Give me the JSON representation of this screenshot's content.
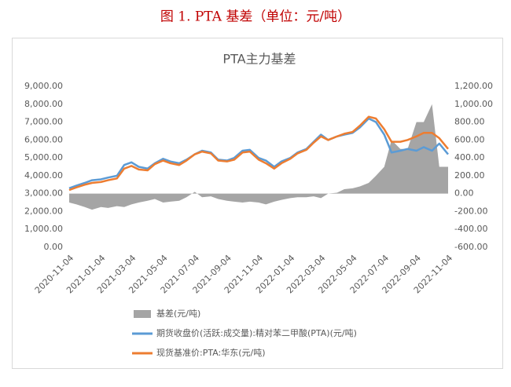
{
  "heading": "图 1. PTA 基差（单位：元/吨）",
  "chart_data": {
    "type": "line",
    "title": "PTA主力基差",
    "x": [
      "2020-11-04",
      "2020-11-18",
      "2020-12-04",
      "2020-12-18",
      "2021-01-04",
      "2021-01-18",
      "2021-02-04",
      "2021-02-18",
      "2021-03-04",
      "2021-03-18",
      "2021-04-04",
      "2021-04-18",
      "2021-05-04",
      "2021-05-18",
      "2021-06-04",
      "2021-06-18",
      "2021-07-04",
      "2021-07-18",
      "2021-08-04",
      "2021-08-18",
      "2021-09-04",
      "2021-09-18",
      "2021-10-04",
      "2021-10-18",
      "2021-11-04",
      "2021-11-18",
      "2021-12-04",
      "2021-12-18",
      "2022-01-04",
      "2022-01-18",
      "2022-02-04",
      "2022-02-18",
      "2022-03-04",
      "2022-03-18",
      "2022-04-04",
      "2022-04-18",
      "2022-05-04",
      "2022-05-18",
      "2022-06-04",
      "2022-06-18",
      "2022-07-04",
      "2022-07-18",
      "2022-08-04",
      "2022-08-18",
      "2022-09-04",
      "2022-09-18",
      "2022-10-04",
      "2022-10-18",
      "2022-11-04"
    ],
    "series": [
      {
        "name": "基差(元/吨)",
        "color": "#a5a5a5",
        "axis": "y2",
        "kind": "area",
        "values": [
          -100,
          -120,
          -150,
          -180,
          -150,
          -160,
          -140,
          -150,
          -120,
          -100,
          -80,
          -60,
          -100,
          -90,
          -80,
          -40,
          20,
          -40,
          -30,
          -60,
          -80,
          -90,
          -100,
          -90,
          -100,
          -120,
          -90,
          -70,
          -50,
          -40,
          -40,
          -30,
          -50,
          0,
          10,
          50,
          60,
          80,
          120,
          200,
          300,
          600,
          500,
          500,
          800,
          800,
          1000,
          300,
          300
        ]
      },
      {
        "name": "期货收盘价(活跃:成交量):精对苯二甲酸(PTA)(元/吨)",
        "color": "#5b9bd5",
        "values": [
          3300,
          3450,
          3600,
          3750,
          3800,
          3900,
          4000,
          4600,
          4750,
          4500,
          4400,
          4700,
          4950,
          4800,
          4700,
          4900,
          5200,
          5400,
          5300,
          4900,
          4850,
          5000,
          5400,
          5450,
          5000,
          4850,
          4500,
          4800,
          5000,
          5300,
          5500,
          5900,
          6300,
          6000,
          6200,
          6300,
          6400,
          6700,
          7200,
          7000,
          6300,
          5300,
          5400,
          5500,
          5400,
          5600,
          5400,
          5800,
          5200
        ]
      },
      {
        "name": "现货基准价:PTA:华东(元/吨)",
        "color": "#ed7d31",
        "values": [
          3200,
          3350,
          3500,
          3600,
          3650,
          3750,
          3850,
          4400,
          4550,
          4350,
          4300,
          4650,
          4850,
          4700,
          4600,
          4850,
          5200,
          5350,
          5250,
          4850,
          4800,
          4900,
          5300,
          5350,
          4900,
          4700,
          4400,
          4700,
          4950,
          5250,
          5450,
          5850,
          6200,
          6000,
          6200,
          6350,
          6450,
          6800,
          7300,
          7200,
          6600,
          5900,
          5900,
          6000,
          6200,
          6400,
          6400,
          6100,
          5500
        ]
      }
    ],
    "xlim": [
      "2020-11-04",
      "2022-11-04"
    ],
    "xticks": [
      "2020-11-04",
      "2021-01-04",
      "2021-03-04",
      "2021-05-04",
      "2021-07-04",
      "2021-09-04",
      "2021-11-04",
      "2022-01-04",
      "2022-03-04",
      "2022-05-04",
      "2022-07-04",
      "2022-09-04",
      "2022-11-04"
    ],
    "ylim": [
      0,
      9000
    ],
    "yticks": [
      {
        "value": 0,
        "label": "0.00"
      },
      {
        "value": 1000,
        "label": "1,000.00"
      },
      {
        "value": 2000,
        "label": "2,000.00"
      },
      {
        "value": 3000,
        "label": "3,000.00"
      },
      {
        "value": 4000,
        "label": "4,000.00"
      },
      {
        "value": 5000,
        "label": "5,000.00"
      },
      {
        "value": 6000,
        "label": "6,000.00"
      },
      {
        "value": 7000,
        "label": "7,000.00"
      },
      {
        "value": 8000,
        "label": "8,000.00"
      },
      {
        "value": 9000,
        "label": "9,000.00"
      }
    ],
    "y2lim": [
      -600,
      1200
    ],
    "y2ticks": [
      {
        "value": -600,
        "label": "-600.00"
      },
      {
        "value": -400,
        "label": "-400.00"
      },
      {
        "value": -200,
        "label": "-200.00"
      },
      {
        "value": 0,
        "label": "0.00"
      },
      {
        "value": 200,
        "label": "200.00"
      },
      {
        "value": 400,
        "label": "400.00"
      },
      {
        "value": 600,
        "label": "600.00"
      },
      {
        "value": 800,
        "label": "800.00"
      },
      {
        "value": 1000,
        "label": "1,000.00"
      },
      {
        "value": 1200,
        "label": "1,200.00"
      }
    ],
    "grid": false,
    "legend": "bottom"
  }
}
